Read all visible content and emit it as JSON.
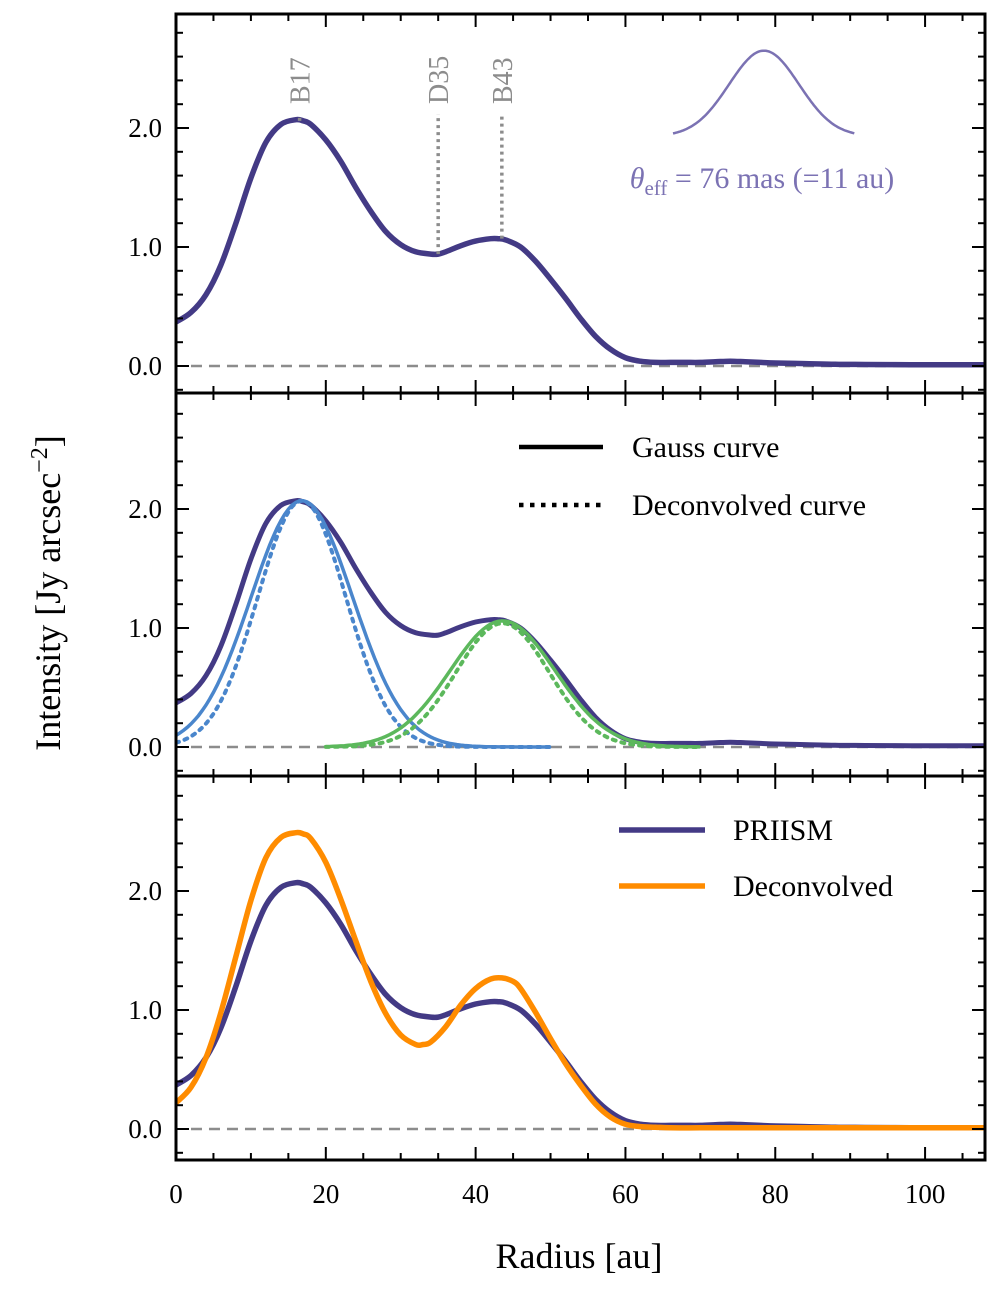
{
  "chart_data": {
    "type": "line",
    "xlabel": "Radius [au]",
    "ylabel": "Intensity [Jy arcsec",
    "ylabel_sup": "−2",
    "ylabel_close": "]",
    "xlim": [
      0,
      108
    ],
    "ylim": [
      -0.22,
      3.0
    ],
    "xticks": [
      0,
      20,
      40,
      60,
      80,
      100
    ],
    "xtick_labels": [
      "0",
      "20",
      "40",
      "60",
      "80",
      "100"
    ],
    "yticks": [
      0,
      1,
      2
    ],
    "ytick_labels": [
      "0.0",
      "1.0",
      "2.0"
    ],
    "colors": {
      "priism": "#433a85",
      "deconvolved": "#ff8c00",
      "gauss1": "#4a86cc",
      "gauss2": "#5cb85c",
      "zero_line": "#8c8c8c",
      "feature_line": "#8c8c8c",
      "beam": "#7b72b3"
    },
    "priism_profile": {
      "x": [
        0,
        2,
        4,
        6,
        8,
        10,
        12,
        14,
        16,
        17,
        18,
        20,
        22,
        24,
        26,
        28,
        30,
        32,
        34,
        35,
        36,
        38,
        40,
        42,
        43,
        44,
        46,
        48,
        50,
        52,
        54,
        56,
        58,
        60,
        62,
        64,
        66,
        68,
        70,
        72,
        74,
        76,
        78,
        80,
        84,
        88,
        92,
        96,
        100,
        104,
        108
      ],
      "y": [
        0.37,
        0.45,
        0.6,
        0.85,
        1.2,
        1.58,
        1.88,
        2.03,
        2.07,
        2.06,
        2.03,
        1.9,
        1.72,
        1.5,
        1.3,
        1.13,
        1.02,
        0.96,
        0.94,
        0.94,
        0.96,
        1.01,
        1.05,
        1.07,
        1.07,
        1.06,
        1.0,
        0.88,
        0.73,
        0.57,
        0.4,
        0.25,
        0.14,
        0.07,
        0.04,
        0.03,
        0.03,
        0.03,
        0.03,
        0.035,
        0.04,
        0.035,
        0.03,
        0.025,
        0.02,
        0.015,
        0.013,
        0.012,
        0.01,
        0.01,
        0.01
      ]
    },
    "panels": [
      {
        "name": "top",
        "features": [
          {
            "label": "B17",
            "x": 16.5,
            "y": 2.06
          },
          {
            "label": "D35",
            "x": 35.0,
            "y": 0.94
          },
          {
            "label": "B43",
            "x": 43.5,
            "y": 1.07
          }
        ],
        "beam": {
          "label_theta": "θ",
          "label_sub": "eff",
          "label_rest": " = 76 mas (=11 au)",
          "center_x": 78.5,
          "fwhm_au": 11,
          "peak_y": 2.65,
          "base_y": 1.93
        }
      },
      {
        "name": "middle",
        "legend": [
          {
            "label": "Gauss curve",
            "style": "solid"
          },
          {
            "label": "Deconvolved curve",
            "style": "dotted"
          }
        ],
        "gaussians": [
          {
            "name": "Gauss 1",
            "amp": 2.07,
            "mu": 16.8,
            "sigma": 6.8,
            "x_range": [
              0,
              50
            ],
            "style": "solid",
            "color_key": "gauss1"
          },
          {
            "name": "Gauss 1 deconvolved",
            "amp": 2.07,
            "mu": 16.8,
            "sigma": 5.9,
            "x_range": [
              0,
              50
            ],
            "style": "dotted",
            "color_key": "gauss1"
          },
          {
            "name": "Gauss 2",
            "amp": 1.06,
            "mu": 43.6,
            "sigma": 7.0,
            "x_range": [
              20,
              70
            ],
            "style": "solid",
            "color_key": "gauss2"
          },
          {
            "name": "Gauss 2 deconvolved",
            "amp": 1.04,
            "mu": 43.6,
            "sigma": 6.2,
            "x_range": [
              20,
              70
            ],
            "style": "dotted",
            "color_key": "gauss2"
          }
        ]
      },
      {
        "name": "bottom",
        "legend": [
          {
            "label": "PRIISM",
            "color_key": "priism"
          },
          {
            "label": "Deconvolved",
            "color_key": "deconvolved"
          }
        ],
        "deconvolved_profile": {
          "x": [
            0,
            2,
            4,
            6,
            8,
            10,
            12,
            14,
            16,
            17,
            18,
            20,
            22,
            24,
            26,
            28,
            30,
            32,
            33,
            34,
            36,
            38,
            40,
            42,
            43.5,
            45,
            46,
            48,
            50,
            52,
            54,
            56,
            58,
            60,
            62,
            64,
            66,
            70,
            74,
            78,
            84,
            90,
            96,
            102,
            108
          ],
          "y": [
            0.22,
            0.35,
            0.6,
            0.98,
            1.45,
            1.92,
            2.28,
            2.45,
            2.49,
            2.48,
            2.44,
            2.24,
            1.93,
            1.58,
            1.24,
            0.97,
            0.79,
            0.71,
            0.71,
            0.73,
            0.86,
            1.04,
            1.18,
            1.26,
            1.27,
            1.24,
            1.18,
            0.98,
            0.76,
            0.55,
            0.37,
            0.21,
            0.1,
            0.04,
            0.02,
            0.015,
            0.01,
            0.01,
            0.01,
            0.01,
            0.01,
            0.01,
            0.01,
            0.01,
            0.01
          ]
        }
      }
    ]
  }
}
